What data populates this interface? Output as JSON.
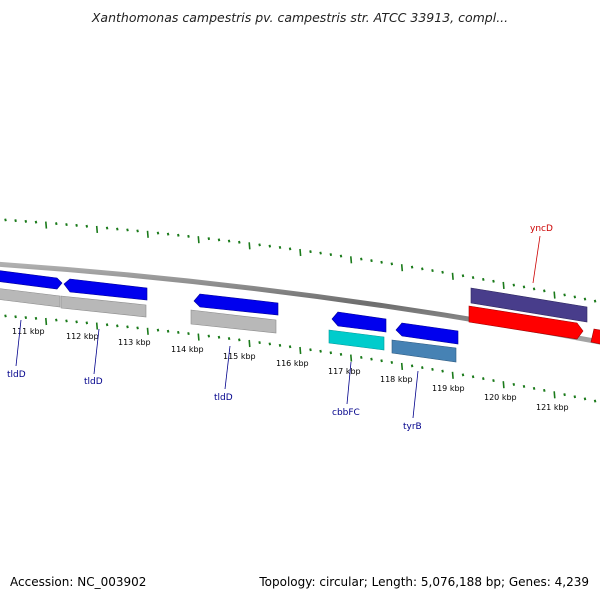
{
  "header": {
    "title": "Xanthomonas campestris pv. campestris str. ATCC 33913, compl..."
  },
  "footer": {
    "accession": "Accession: NC_003902",
    "topology": "Topology: circular; Length: 5,076,188 bp; Genes: 4,239"
  },
  "map": {
    "ticks": [
      {
        "label": "111 kbp"
      },
      {
        "label": "112 kbp"
      },
      {
        "label": "113 kbp"
      },
      {
        "label": "114 kbp"
      },
      {
        "label": "115 kbp"
      },
      {
        "label": "116 kbp"
      },
      {
        "label": "117 kbp"
      },
      {
        "label": "118 kbp"
      },
      {
        "label": "119 kbp"
      },
      {
        "label": "120 kbp"
      },
      {
        "label": "121 kbp"
      }
    ],
    "genes": [
      {
        "name": "tldD",
        "color": "#00008b"
      },
      {
        "name": "tldD",
        "color": "#00008b"
      },
      {
        "name": "tldD",
        "color": "#00008b"
      },
      {
        "name": "cbbFC",
        "color": "#00008b"
      },
      {
        "name": "tyrB",
        "color": "#00008b"
      },
      {
        "name": "yncD",
        "color": "#cc0000"
      }
    ],
    "colors": {
      "backbone": "#7a7a7a",
      "tick_marks": "#1a7a1a",
      "cds_forward": "#0000ee",
      "cds_reverse": "#ff0000",
      "gene_gray": "#b4b4b4",
      "gene_cyan": "#00cccc",
      "gene_steel": "#4682b4",
      "gene_purple": "#483d8b"
    }
  }
}
